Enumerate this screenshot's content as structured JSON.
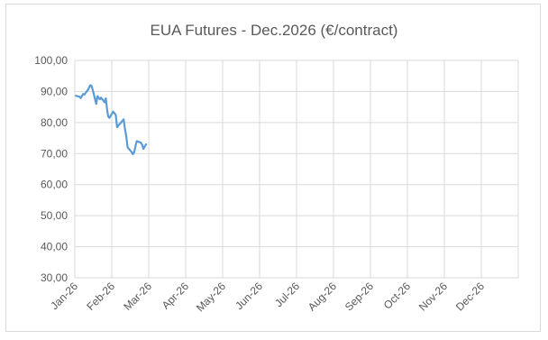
{
  "chart_data": {
    "type": "line",
    "title": "EUA Futures - Dec.2026 (€/contract)",
    "xlabel": "",
    "ylabel": "",
    "ylim": [
      30,
      100
    ],
    "y_ticks": [
      "100,00",
      "90,00",
      "80,00",
      "70,00",
      "60,00",
      "50,00",
      "40,00",
      "30,00"
    ],
    "y_tick_values": [
      100,
      90,
      80,
      70,
      60,
      50,
      40,
      30
    ],
    "x_ticks": [
      "Jan-26",
      "Feb-26",
      "Mar-26",
      "Apr-26",
      "May-26",
      "Jun-26",
      "Jul-26",
      "Aug-26",
      "Sep-26",
      "Oct-26",
      "Nov-26",
      "Dec-26"
    ],
    "grid": true,
    "legend": "none",
    "line_color": "#5b9bd5",
    "series": [
      {
        "x": [
          "2026-01-02",
          "2026-01-05",
          "2026-01-06",
          "2026-01-07",
          "2026-01-08",
          "2026-01-09",
          "2026-01-12",
          "2026-01-13",
          "2026-01-14",
          "2026-01-15",
          "2026-01-16",
          "2026-01-19",
          "2026-01-20",
          "2026-01-21",
          "2026-01-22",
          "2026-01-23",
          "2026-01-26",
          "2026-01-27",
          "2026-01-28",
          "2026-01-29",
          "2026-01-30",
          "2026-02-02",
          "2026-02-03",
          "2026-02-04",
          "2026-02-05",
          "2026-02-06",
          "2026-02-09",
          "2026-02-10",
          "2026-02-11",
          "2026-02-12",
          "2026-02-13",
          "2026-02-16",
          "2026-02-17",
          "2026-02-18",
          "2026-02-19",
          "2026-02-20",
          "2026-02-23",
          "2026-02-24",
          "2026-02-25",
          "2026-02-26",
          "2026-02-27"
        ],
        "values": [
          88.6,
          88.3,
          87.9,
          88.5,
          89.2,
          89.0,
          90.5,
          91.3,
          92.0,
          91.8,
          90.6,
          86.0,
          88.5,
          88.0,
          87.5,
          88.0,
          86.5,
          87.8,
          84.5,
          82.0,
          81.5,
          83.5,
          83.0,
          82.5,
          78.5,
          79.0,
          80.5,
          81.0,
          78.0,
          75.5,
          72.0,
          70.5,
          69.8,
          70.5,
          72.5,
          74.0,
          73.5,
          72.8,
          71.5,
          72.3,
          73.0
        ]
      }
    ]
  }
}
